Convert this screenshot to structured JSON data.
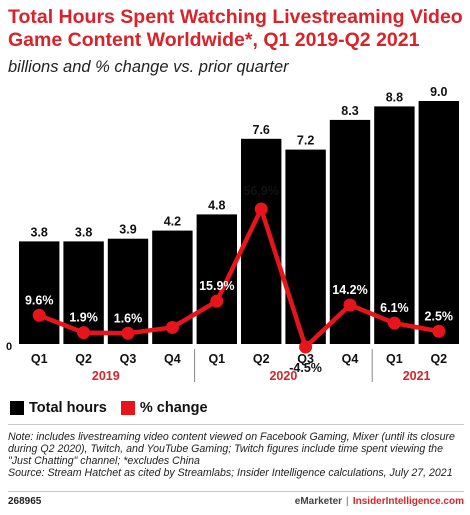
{
  "header": {
    "title": "Total Hours Spent Watching Livestreaming Video Game Content Worldwide*, Q1 2019-Q2 2021",
    "subtitle": "billions and % change vs. prior quarter"
  },
  "chart_data": {
    "type": "bar",
    "categories": [
      "Q1",
      "Q2",
      "Q3",
      "Q4",
      "Q1",
      "Q2",
      "Q3",
      "Q4",
      "Q1",
      "Q2"
    ],
    "years": [
      {
        "label": "2019",
        "quarters": 4
      },
      {
        "label": "2020",
        "quarters": 4
      },
      {
        "label": "2021",
        "quarters": 2
      }
    ],
    "series": [
      {
        "name": "Total hours",
        "type": "bar",
        "color": "#000000",
        "values": [
          3.8,
          3.8,
          3.9,
          4.2,
          4.8,
          7.6,
          7.2,
          8.3,
          8.8,
          9.0
        ],
        "labels": [
          "3.8",
          "3.8",
          "3.9",
          "4.2",
          "4.8",
          "7.6",
          "7.2",
          "8.3",
          "8.8",
          "9.0"
        ]
      },
      {
        "name": "% change",
        "type": "line",
        "color": "#e8141c",
        "values": [
          9.6,
          1.9,
          1.6,
          4.2,
          15.9,
          56.9,
          -4.5,
          14.2,
          6.1,
          2.5
        ],
        "labels": [
          "9.6%",
          "1.9%",
          "1.6%",
          "",
          "15.9%",
          "56.9%",
          "-4.5%",
          "14.2%",
          "6.1%",
          "2.5%"
        ]
      }
    ],
    "ylim": [
      0,
      9.0
    ],
    "y2lim": [
      -4.5,
      56.9
    ],
    "zero_label": "0",
    "legend_position": "bottom-left"
  },
  "legend": {
    "hours_label": "Total hours",
    "change_label": "% change",
    "hours_color": "#000000",
    "change_color": "#e8141c"
  },
  "note": "Note: includes livestreaming video content viewed on Facebook Gaming, Mixer (until its closure during Q2 2020), Twitch, and YouTube Gaming; Twitch figures include time spent viewing the \"Just Chatting\" channel; *excludes China\nSource: Stream Hatchet as cited by Streamlabs; Insider Intelligence calculations, July 27, 2021",
  "footer": {
    "id": "268965",
    "brand": "eMarketer",
    "separator": "|",
    "site": "InsiderIntelligence.com"
  }
}
